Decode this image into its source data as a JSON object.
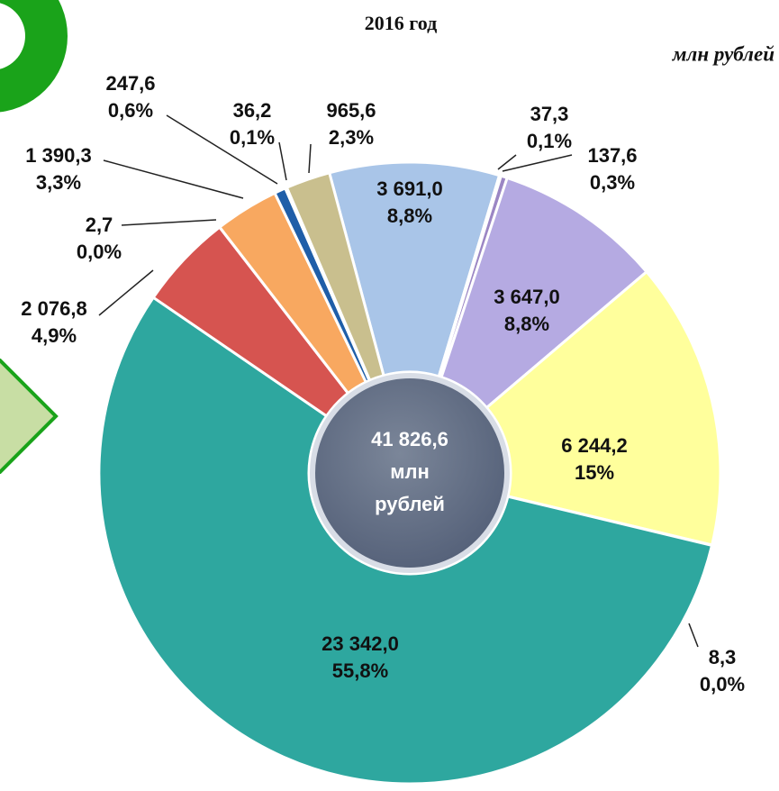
{
  "chart_data": {
    "type": "donut",
    "title": "2016 год",
    "subtitle": "млн рублей",
    "center_label": [
      "41 826,6",
      "млн",
      "рублей"
    ],
    "values": [
      3691.0,
      37.3,
      137.6,
      3647.0,
      6244.2,
      8.3,
      23342.0,
      2076.8,
      2.7,
      1390.3,
      247.6,
      36.2,
      965.6
    ],
    "value_labels": [
      "3 691,0",
      "37,3",
      "137,6",
      "3 647,0",
      "6 244,2",
      "8,3",
      "23 342,0",
      "2 076,8",
      "2,7",
      "1 390,3",
      "247,6",
      "36,2",
      "965,6"
    ],
    "percents": [
      8.8,
      0.1,
      0.3,
      8.8,
      15,
      0.0,
      55.8,
      4.9,
      0.0,
      3.3,
      0.6,
      0.1,
      2.3
    ],
    "percent_labels": [
      "8,8%",
      "0,1%",
      "0,3%",
      "8,8%",
      "15%",
      "0,0%",
      "55,8%",
      "4,9%",
      "0,0%",
      "3,3%",
      "0,6%",
      "0,1%",
      "2,3%"
    ],
    "colors": [
      "#a9c5e8",
      "#c2607e",
      "#9b86c4",
      "#b5aae2",
      "#ffff9c",
      "#c8c8c8",
      "#2ea79f",
      "#d65450",
      "#8b3a3a",
      "#f8a860",
      "#1f5ea8",
      "#9fc0e2",
      "#c9bf8e"
    ]
  }
}
